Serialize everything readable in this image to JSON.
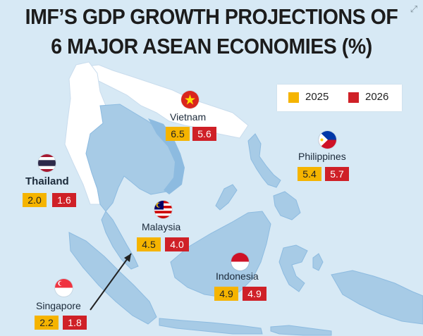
{
  "title": {
    "line1": "IMF’S GDP GROWTH PROJECTIONS OF",
    "line2": "6 MAJOR ASEAN ECONOMIES (%)"
  },
  "legend": {
    "items": [
      {
        "label": "2025",
        "color": "#f5b400"
      },
      {
        "label": "2026",
        "color": "#cf2027"
      }
    ]
  },
  "countries": {
    "vietnam": {
      "name": "Vietnam",
      "y2025": "6.5",
      "y2026": "5.6",
      "flag": "vietnam-flag-icon"
    },
    "philippines": {
      "name": "Philippines",
      "y2025": "5.4",
      "y2026": "5.7",
      "flag": "philippines-flag-icon"
    },
    "thailand": {
      "name": "Thailand",
      "y2025": "2.0",
      "y2026": "1.6",
      "flag": "thailand-flag-icon"
    },
    "malaysia": {
      "name": "Malaysia",
      "y2025": "4.5",
      "y2026": "4.0",
      "flag": "malaysia-flag-icon"
    },
    "indonesia": {
      "name": "Indonesia",
      "y2025": "4.9",
      "y2026": "4.9",
      "flag": "indonesia-flag-icon"
    },
    "singapore": {
      "name": "Singapore",
      "y2025": "2.2",
      "y2026": "1.8",
      "flag": "singapore-flag-icon"
    }
  },
  "colors": {
    "sea": "#d7e9f5",
    "land": "#a7cbe6",
    "land_dark": "#8dbbe0",
    "china_land": "#ffffff"
  },
  "icons": {
    "expand": "expand-icon"
  }
}
